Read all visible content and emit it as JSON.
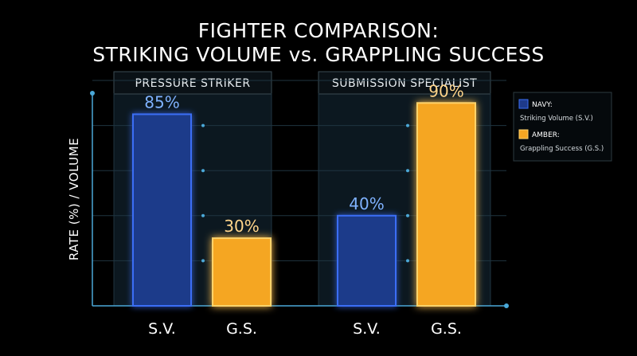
{
  "chart_data": {
    "type": "bar",
    "title": [
      "FIGHTER COMPARISON:",
      "STRIKING VOLUME vs. GRAPPLING SUCCESS"
    ],
    "ylabel": "RATE (%) / VOLUME",
    "ylim": [
      0,
      100
    ],
    "groups": [
      {
        "name": "PRESSURE STRIKER",
        "categories": [
          "S.V.",
          "G.S."
        ],
        "values": [
          85,
          30
        ],
        "labels": [
          "85%",
          "30%"
        ]
      },
      {
        "name": "SUBMISSION SPECIALIST",
        "categories": [
          "S.V.",
          "G.S."
        ],
        "values": [
          40,
          90
        ],
        "labels": [
          "40%",
          "90%"
        ]
      }
    ],
    "legend": {
      "placement": "right",
      "entries": [
        {
          "key": "NAVY:",
          "name": "Striking Volume (S.V.)",
          "color": "#1e3a8a"
        },
        {
          "key": "AMBER:",
          "name": "Grappling Success (G.S.)",
          "color": "#f5a623"
        }
      ]
    },
    "grid": true
  },
  "colors": {
    "navy_fill": "#1e3a8a",
    "navy_stroke": "#3b6ef5",
    "navy_label": "#7fb2ff",
    "amber_fill": "#f5a623",
    "amber_stroke": "#ffd36b",
    "amber_label": "#ffd58a",
    "axis": "#4aa8d8",
    "grid": "#1f3440",
    "panel": "#0c1820"
  }
}
